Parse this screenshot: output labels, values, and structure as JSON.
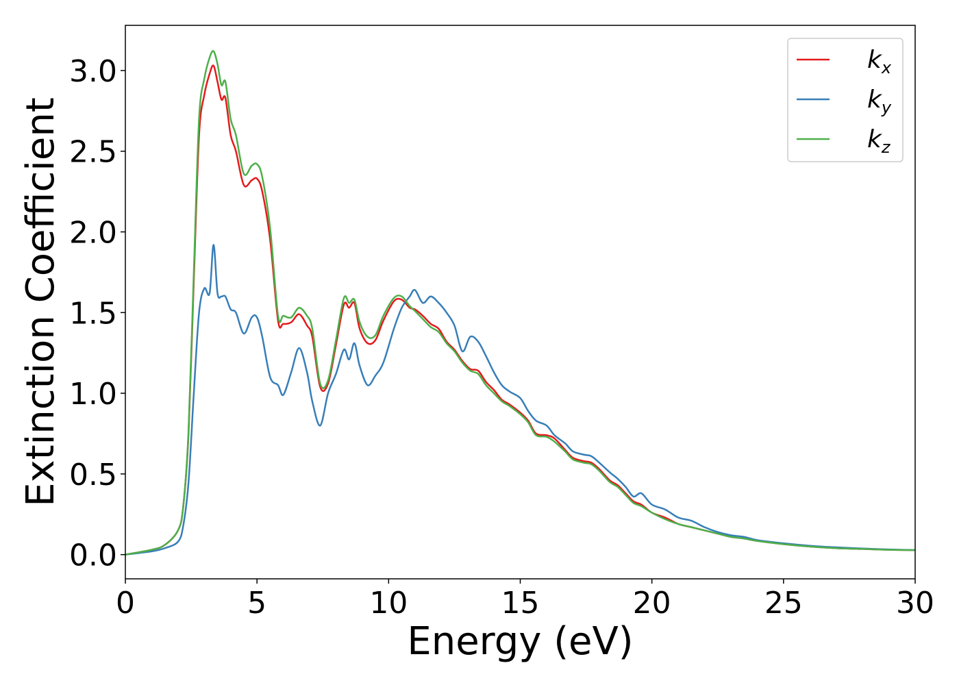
{
  "chart_data": {
    "type": "line",
    "title": "",
    "xlabel": "Energy (eV)",
    "ylabel": "Extinction Coefficient",
    "xlim": [
      0,
      30
    ],
    "ylim": [
      -0.15,
      3.28
    ],
    "xticks": [
      0,
      5,
      10,
      15,
      20,
      25,
      30
    ],
    "xtick_labels": [
      "0",
      "5",
      "10",
      "15",
      "20",
      "25",
      "30"
    ],
    "yticks": [
      0.0,
      0.5,
      1.0,
      1.5,
      2.0,
      2.5,
      3.0
    ],
    "ytick_labels": [
      "0.0",
      "0.5",
      "1.0",
      "1.5",
      "2.0",
      "2.5",
      "3.0"
    ],
    "grid": false,
    "legend_position": "top-right",
    "x": [
      0,
      1.0,
      1.5,
      2.0,
      2.2,
      2.4,
      2.6,
      2.8,
      3.0,
      3.2,
      3.35,
      3.5,
      3.65,
      3.8,
      4.0,
      4.2,
      4.5,
      4.8,
      5.0,
      5.2,
      5.5,
      5.8,
      6.0,
      6.3,
      6.6,
      6.9,
      7.1,
      7.4,
      7.7,
      8.0,
      8.3,
      8.5,
      8.7,
      8.9,
      9.2,
      9.5,
      9.8,
      10.2,
      10.5,
      10.8,
      11.0,
      11.3,
      11.6,
      11.9,
      12.2,
      12.5,
      12.8,
      13.1,
      13.4,
      13.7,
      14.0,
      14.3,
      14.6,
      15.0,
      15.3,
      15.6,
      16.0,
      16.3,
      16.7,
      17.0,
      17.4,
      17.7,
      18.0,
      18.4,
      18.7,
      19.0,
      19.3,
      19.6,
      20.0,
      20.5,
      21.0,
      21.5,
      22.0,
      22.5,
      23.0,
      23.5,
      24.0,
      25.0,
      26.0,
      27.0,
      28.0,
      29.0,
      30.0
    ],
    "series": [
      {
        "name": "k_x",
        "label_base": "k",
        "label_sub": "x",
        "color": "#e41a1c",
        "values": [
          0.0,
          0.03,
          0.06,
          0.15,
          0.3,
          0.75,
          1.7,
          2.6,
          2.85,
          2.98,
          3.03,
          2.93,
          2.82,
          2.83,
          2.6,
          2.5,
          2.29,
          2.32,
          2.33,
          2.25,
          1.95,
          1.45,
          1.43,
          1.44,
          1.49,
          1.42,
          1.35,
          1.04,
          1.06,
          1.3,
          1.55,
          1.53,
          1.56,
          1.4,
          1.31,
          1.33,
          1.45,
          1.57,
          1.58,
          1.53,
          1.52,
          1.48,
          1.43,
          1.4,
          1.32,
          1.27,
          1.2,
          1.15,
          1.14,
          1.07,
          1.02,
          0.96,
          0.93,
          0.88,
          0.83,
          0.75,
          0.74,
          0.72,
          0.65,
          0.6,
          0.58,
          0.57,
          0.53,
          0.46,
          0.43,
          0.38,
          0.33,
          0.31,
          0.26,
          0.23,
          0.19,
          0.17,
          0.15,
          0.13,
          0.11,
          0.1,
          0.085,
          0.065,
          0.05,
          0.04,
          0.035,
          0.03,
          0.028
        ]
      },
      {
        "name": "k_y",
        "label_base": "k",
        "label_sub": "y",
        "color": "#377eb8",
        "values": [
          0.0,
          0.02,
          0.04,
          0.08,
          0.18,
          0.45,
          1.0,
          1.5,
          1.65,
          1.62,
          1.92,
          1.62,
          1.6,
          1.6,
          1.52,
          1.5,
          1.37,
          1.47,
          1.47,
          1.35,
          1.1,
          1.05,
          0.99,
          1.13,
          1.28,
          1.13,
          0.95,
          0.8,
          1.0,
          1.12,
          1.27,
          1.21,
          1.31,
          1.17,
          1.05,
          1.11,
          1.19,
          1.4,
          1.53,
          1.6,
          1.64,
          1.56,
          1.6,
          1.56,
          1.5,
          1.42,
          1.26,
          1.35,
          1.32,
          1.23,
          1.13,
          1.05,
          1.01,
          0.97,
          0.89,
          0.83,
          0.8,
          0.74,
          0.69,
          0.64,
          0.62,
          0.61,
          0.57,
          0.51,
          0.47,
          0.42,
          0.36,
          0.38,
          0.31,
          0.28,
          0.23,
          0.21,
          0.17,
          0.14,
          0.12,
          0.11,
          0.09,
          0.07,
          0.055,
          0.045,
          0.038,
          0.032,
          0.028
        ]
      },
      {
        "name": "k_z",
        "label_base": "k",
        "label_sub": "z",
        "color": "#4daf4a",
        "values": [
          0.0,
          0.03,
          0.06,
          0.15,
          0.3,
          0.77,
          1.75,
          2.7,
          2.95,
          3.08,
          3.12,
          3.04,
          2.91,
          2.93,
          2.7,
          2.6,
          2.36,
          2.41,
          2.42,
          2.34,
          2.02,
          1.48,
          1.48,
          1.47,
          1.53,
          1.48,
          1.4,
          1.06,
          1.08,
          1.33,
          1.59,
          1.56,
          1.58,
          1.44,
          1.35,
          1.36,
          1.48,
          1.59,
          1.6,
          1.54,
          1.51,
          1.46,
          1.41,
          1.38,
          1.31,
          1.26,
          1.19,
          1.14,
          1.12,
          1.05,
          1.0,
          0.95,
          0.92,
          0.87,
          0.82,
          0.74,
          0.73,
          0.7,
          0.64,
          0.59,
          0.57,
          0.56,
          0.52,
          0.45,
          0.42,
          0.37,
          0.32,
          0.3,
          0.26,
          0.22,
          0.19,
          0.17,
          0.15,
          0.13,
          0.11,
          0.1,
          0.085,
          0.065,
          0.05,
          0.04,
          0.035,
          0.03,
          0.028
        ]
      }
    ]
  }
}
